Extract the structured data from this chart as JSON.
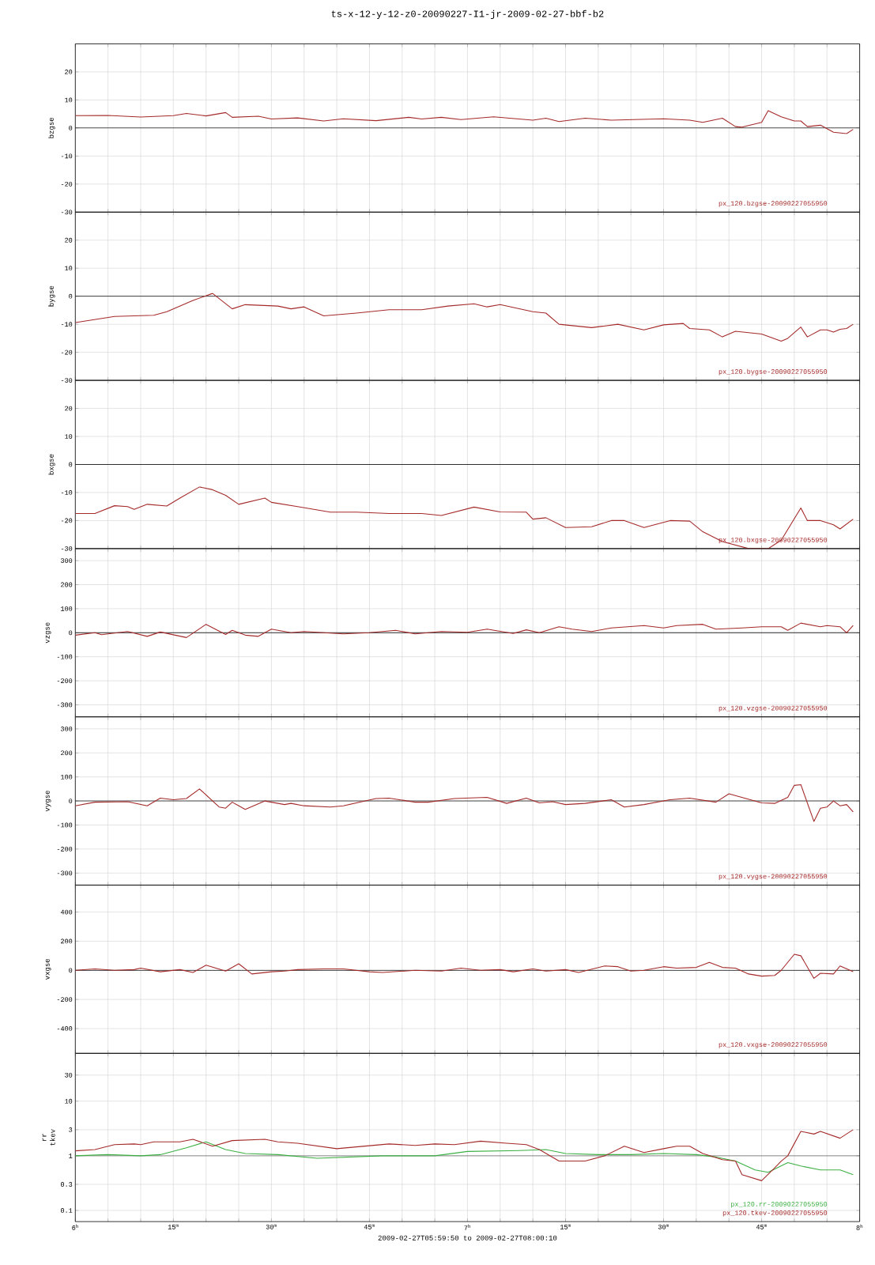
{
  "chart_data": [
    {
      "type": "line",
      "title": "ts-x-12-y-12-z0-20090227-I1-jr-2009-02-27-bbf-b2",
      "ylabel": "bzgse",
      "xlim": [
        "2009-02-27T06:00",
        "2009-02-27T08:00"
      ],
      "xticks": [
        "2009-02-27T06:00",
        "2009-02-27T06:05",
        "2009-02-27T06:10",
        "2009-02-27T06:15",
        "2009-02-27T06:20",
        "2009-02-27T06:25",
        "2009-02-27T06:30",
        "2009-02-27T06:35",
        "2009-02-27T06:40",
        "2009-02-27T06:45",
        "2009-02-27T06:50",
        "2009-02-27T06:55",
        "2009-02-27T07:00",
        "2009-02-27T07:05",
        "2009-02-27T07:10",
        "2009-02-27T07:15",
        "2009-02-27T07:20",
        "2009-02-27T07:25",
        "2009-02-27T07:30",
        "2009-02-27T07:35",
        "2009-02-27T07:40",
        "2009-02-27T07:45",
        "2009-02-27T07:50",
        "2009-02-27T07:55",
        "2009-02-27T08:00"
      ],
      "ylim": [
        -30,
        30
      ],
      "yticks": [
        -30,
        -20,
        -10,
        0,
        10,
        20
      ],
      "tick_labels": "y",
      "grid": true,
      "ref_lines": [
        {
          "axis": "y",
          "value": 0,
          "color": "#000000"
        }
      ],
      "series": [
        {
          "name": "px_120.bzgse-20090227055950",
          "color": "#a52a2a",
          "x": [
            "2009-02-27T06:00",
            "2009-02-27T06:05",
            "2009-02-27T06:10",
            "2009-02-27T06:15",
            "2009-02-27T06:17",
            "2009-02-27T06:20",
            "2009-02-27T06:23",
            "2009-02-27T06:24",
            "2009-02-27T06:28",
            "2009-02-27T06:30",
            "2009-02-27T06:34",
            "2009-02-27T06:38",
            "2009-02-27T06:41",
            "2009-02-27T06:46",
            "2009-02-27T06:51",
            "2009-02-27T06:53",
            "2009-02-27T06:56",
            "2009-02-27T06:59",
            "2009-02-27T07:04",
            "2009-02-27T07:10",
            "2009-02-27T07:12",
            "2009-02-27T07:14",
            "2009-02-27T07:18",
            "2009-02-27T07:22",
            "2009-02-27T07:30",
            "2009-02-27T07:34",
            "2009-02-27T07:36",
            "2009-02-27T07:39",
            "2009-02-27T07:41",
            "2009-02-27T07:42",
            "2009-02-27T07:45",
            "2009-02-27T07:46",
            "2009-02-27T07:48",
            "2009-02-27T07:50",
            "2009-02-27T07:51",
            "2009-02-27T07:52",
            "2009-02-27T07:54",
            "2009-02-27T07:56",
            "2009-02-27T07:58",
            "2009-02-27T07:59"
          ],
          "values": [
            4.4,
            4.5,
            3.9,
            4.4,
            5.2,
            4.3,
            5.5,
            3.8,
            4.2,
            3.2,
            3.6,
            2.5,
            3.3,
            2.6,
            3.8,
            3.2,
            3.8,
            3.0,
            4.0,
            2.8,
            3.5,
            2.3,
            3.5,
            2.8,
            3.3,
            2.8,
            2.0,
            3.5,
            0.5,
            0.3,
            2.0,
            6.2,
            4.0,
            2.5,
            2.5,
            0.5,
            1.0,
            -1.5,
            -2.0,
            -0.5
          ]
        }
      ]
    },
    {
      "type": "line",
      "ylabel": "bygse",
      "xlim": [
        "2009-02-27T06:00",
        "2009-02-27T08:00"
      ],
      "xticks": [
        "2009-02-27T06:00",
        "2009-02-27T06:05",
        "2009-02-27T06:10",
        "2009-02-27T06:15",
        "2009-02-27T06:20",
        "2009-02-27T06:25",
        "2009-02-27T06:30",
        "2009-02-27T06:35",
        "2009-02-27T06:40",
        "2009-02-27T06:45",
        "2009-02-27T06:50",
        "2009-02-27T06:55",
        "2009-02-27T07:00",
        "2009-02-27T07:05",
        "2009-02-27T07:10",
        "2009-02-27T07:15",
        "2009-02-27T07:20",
        "2009-02-27T07:25",
        "2009-02-27T07:30",
        "2009-02-27T07:35",
        "2009-02-27T07:40",
        "2009-02-27T07:45",
        "2009-02-27T07:50",
        "2009-02-27T07:55",
        "2009-02-27T08:00"
      ],
      "ylim": [
        -30,
        30
      ],
      "yticks": [
        -30,
        -20,
        -10,
        0,
        10,
        20
      ],
      "tick_labels": "y",
      "grid": true,
      "ref_lines": [
        {
          "axis": "y",
          "value": 0,
          "color": "#000000"
        }
      ],
      "series": [
        {
          "name": "px_120.bygse-20090227055950",
          "color": "#a52a2a",
          "x": [
            "2009-02-27T06:00",
            "2009-02-27T06:06",
            "2009-02-27T06:09",
            "2009-02-27T06:12",
            "2009-02-27T06:14",
            "2009-02-27T06:18",
            "2009-02-27T06:21",
            "2009-02-27T06:24",
            "2009-02-27T06:26",
            "2009-02-27T06:31",
            "2009-02-27T06:33",
            "2009-02-27T06:35",
            "2009-02-27T06:38",
            "2009-02-27T06:43",
            "2009-02-27T06:48",
            "2009-02-27T06:53",
            "2009-02-27T06:57",
            "2009-02-27T07:01",
            "2009-02-27T07:03",
            "2009-02-27T07:05",
            "2009-02-27T07:10",
            "2009-02-27T07:12",
            "2009-02-27T07:14",
            "2009-02-27T07:19",
            "2009-02-27T07:23",
            "2009-02-27T07:27",
            "2009-02-27T07:30",
            "2009-02-27T07:33",
            "2009-02-27T07:34",
            "2009-02-27T07:37",
            "2009-02-27T07:39",
            "2009-02-27T07:41",
            "2009-02-27T07:45",
            "2009-02-27T07:48",
            "2009-02-27T07:49",
            "2009-02-27T07:51",
            "2009-02-27T07:52",
            "2009-02-27T07:54",
            "2009-02-27T07:55",
            "2009-02-27T07:56",
            "2009-02-27T07:57",
            "2009-02-27T07:58",
            "2009-02-27T07:59"
          ],
          "values": [
            -9.4,
            -7.2,
            -7.0,
            -6.8,
            -5.5,
            -1.5,
            1.0,
            -4.5,
            -3.0,
            -3.5,
            -4.5,
            -3.8,
            -7.0,
            -6.0,
            -4.8,
            -4.8,
            -3.5,
            -2.7,
            -3.8,
            -3.0,
            -5.5,
            -6.0,
            -10.0,
            -11.2,
            -10.0,
            -12.0,
            -10.2,
            -9.7,
            -11.5,
            -12.0,
            -14.5,
            -12.5,
            -13.5,
            -16.0,
            -15.0,
            -11.0,
            -14.5,
            -12.0,
            -12.0,
            -12.8,
            -11.8,
            -11.5,
            -10.0
          ]
        }
      ]
    },
    {
      "type": "line",
      "ylabel": "bxgse",
      "xlim": [
        "2009-02-27T06:00",
        "2009-02-27T08:00"
      ],
      "xticks": [
        "2009-02-27T06:00",
        "2009-02-27T06:05",
        "2009-02-27T06:10",
        "2009-02-27T06:15",
        "2009-02-27T06:20",
        "2009-02-27T06:25",
        "2009-02-27T06:30",
        "2009-02-27T06:35",
        "2009-02-27T06:40",
        "2009-02-27T06:45",
        "2009-02-27T06:50",
        "2009-02-27T06:55",
        "2009-02-27T07:00",
        "2009-02-27T07:05",
        "2009-02-27T07:10",
        "2009-02-27T07:15",
        "2009-02-27T07:20",
        "2009-02-27T07:25",
        "2009-02-27T07:30",
        "2009-02-27T07:35",
        "2009-02-27T07:40",
        "2009-02-27T07:45",
        "2009-02-27T07:50",
        "2009-02-27T07:55",
        "2009-02-27T08:00"
      ],
      "ylim": [
        -30,
        30
      ],
      "yticks": [
        -30,
        -20,
        -10,
        0,
        10,
        20
      ],
      "tick_labels": "y",
      "grid": true,
      "ref_lines": [
        {
          "axis": "y",
          "value": 0,
          "color": "#000000"
        }
      ],
      "series": [
        {
          "name": "px_120.bxgse-20090227055950",
          "color": "#a52a2a",
          "x": [
            "2009-02-27T06:00",
            "2009-02-27T06:03",
            "2009-02-27T06:06",
            "2009-02-27T06:08",
            "2009-02-27T06:09",
            "2009-02-27T06:11",
            "2009-02-27T06:14",
            "2009-02-27T06:16",
            "2009-02-27T06:19",
            "2009-02-27T06:21",
            "2009-02-27T06:22",
            "2009-02-27T06:23",
            "2009-02-27T06:25",
            "2009-02-27T06:29",
            "2009-02-27T06:30",
            "2009-02-27T06:34",
            "2009-02-27T06:39",
            "2009-02-27T06:43",
            "2009-02-27T06:48",
            "2009-02-27T06:53",
            "2009-02-27T06:56",
            "2009-02-27T07:01",
            "2009-02-27T07:05",
            "2009-02-27T07:09",
            "2009-02-27T07:10",
            "2009-02-27T07:12",
            "2009-02-27T07:15",
            "2009-02-27T07:19",
            "2009-02-27T07:22",
            "2009-02-27T07:24",
            "2009-02-27T07:27",
            "2009-02-27T07:31",
            "2009-02-27T07:34",
            "2009-02-27T07:36",
            "2009-02-27T07:39",
            "2009-02-27T07:43",
            "2009-02-27T07:46",
            "2009-02-27T07:48",
            "2009-02-27T07:51",
            "2009-02-27T07:52",
            "2009-02-27T07:54",
            "2009-02-27T07:56",
            "2009-02-27T07:57",
            "2009-02-27T07:59"
          ],
          "values": [
            -17.5,
            -17.5,
            -14.7,
            -15,
            -16,
            -14.2,
            -14.8,
            -12,
            -8,
            -9,
            -10,
            -11,
            -14.2,
            -12,
            -13.5,
            -15,
            -17,
            -17,
            -17.5,
            -17.5,
            -18.2,
            -15.2,
            -16.9,
            -17,
            -19.5,
            -19,
            -22.5,
            -22.2,
            -20,
            -20,
            -22.5,
            -20,
            -20.2,
            -24,
            -27.5,
            -30,
            -30,
            -27,
            -15.5,
            -20,
            -20,
            -21.5,
            -23,
            -19.5
          ]
        }
      ]
    },
    {
      "type": "line",
      "ylabel": "vzgse",
      "xlim": [
        "2009-02-27T06:00",
        "2009-02-27T08:00"
      ],
      "xticks": [
        "2009-02-27T06:00",
        "2009-02-27T06:05",
        "2009-02-27T06:10",
        "2009-02-27T06:15",
        "2009-02-27T06:20",
        "2009-02-27T06:25",
        "2009-02-27T06:30",
        "2009-02-27T06:35",
        "2009-02-27T06:40",
        "2009-02-27T06:45",
        "2009-02-27T06:50",
        "2009-02-27T06:55",
        "2009-02-27T07:00",
        "2009-02-27T07:05",
        "2009-02-27T07:10",
        "2009-02-27T07:15",
        "2009-02-27T07:20",
        "2009-02-27T07:25",
        "2009-02-27T07:30",
        "2009-02-27T07:35",
        "2009-02-27T07:40",
        "2009-02-27T07:45",
        "2009-02-27T07:50",
        "2009-02-27T07:55",
        "2009-02-27T08:00"
      ],
      "ylim": [
        -350,
        350
      ],
      "yticks": [
        -300,
        -200,
        -100,
        0,
        100,
        200,
        300
      ],
      "tick_labels": "y",
      "grid": true,
      "ref_lines": [
        {
          "axis": "y",
          "value": 0,
          "color": "#000000"
        }
      ],
      "series": [
        {
          "name": "px_120.vzgse-20090227055950",
          "color": "#a52a2a",
          "x": [
            "2009-02-27T06:00",
            "2009-02-27T06:03",
            "2009-02-27T06:04",
            "2009-02-27T06:08",
            "2009-02-27T06:11",
            "2009-02-27T06:13",
            "2009-02-27T06:17",
            "2009-02-27T06:20",
            "2009-02-27T06:23",
            "2009-02-27T06:24",
            "2009-02-27T06:26",
            "2009-02-27T06:28",
            "2009-02-27T06:30",
            "2009-02-27T06:33",
            "2009-02-27T06:35",
            "2009-02-27T06:41",
            "2009-02-27T06:45",
            "2009-02-27T06:49",
            "2009-02-27T06:52",
            "2009-02-27T06:56",
            "2009-02-27T07:00",
            "2009-02-27T07:03",
            "2009-02-27T07:07",
            "2009-02-27T07:09",
            "2009-02-27T07:11",
            "2009-02-27T07:14",
            "2009-02-27T07:16",
            "2009-02-27T07:19",
            "2009-02-27T07:22",
            "2009-02-27T07:27",
            "2009-02-27T07:30",
            "2009-02-27T07:32",
            "2009-02-27T07:36",
            "2009-02-27T07:38",
            "2009-02-27T07:42",
            "2009-02-27T07:45",
            "2009-02-27T07:48",
            "2009-02-27T07:49",
            "2009-02-27T07:51",
            "2009-02-27T07:54",
            "2009-02-27T07:55",
            "2009-02-27T07:57",
            "2009-02-27T07:58",
            "2009-02-27T07:59"
          ],
          "values": [
            -10,
            0,
            -8,
            5,
            -15,
            3,
            -20,
            35,
            -7,
            10,
            -10,
            -15,
            15,
            0,
            5,
            -5,
            0,
            10,
            -5,
            5,
            2,
            15,
            -3,
            12,
            0,
            25,
            15,
            5,
            20,
            30,
            20,
            30,
            35,
            15,
            20,
            25,
            25,
            10,
            40,
            25,
            30,
            25,
            0,
            30
          ]
        }
      ]
    },
    {
      "type": "line",
      "ylabel": "vygse",
      "xlim": [
        "2009-02-27T06:00",
        "2009-02-27T08:00"
      ],
      "xticks": [
        "2009-02-27T06:00",
        "2009-02-27T06:05",
        "2009-02-27T06:10",
        "2009-02-27T06:15",
        "2009-02-27T06:20",
        "2009-02-27T06:25",
        "2009-02-27T06:30",
        "2009-02-27T06:35",
        "2009-02-27T06:40",
        "2009-02-27T06:45",
        "2009-02-27T06:50",
        "2009-02-27T06:55",
        "2009-02-27T07:00",
        "2009-02-27T07:05",
        "2009-02-27T07:10",
        "2009-02-27T07:15",
        "2009-02-27T07:20",
        "2009-02-27T07:25",
        "2009-02-27T07:30",
        "2009-02-27T07:35",
        "2009-02-27T07:40",
        "2009-02-27T07:45",
        "2009-02-27T07:50",
        "2009-02-27T07:55",
        "2009-02-27T08:00"
      ],
      "ylim": [
        -350,
        350
      ],
      "yticks": [
        -300,
        -200,
        -100,
        0,
        100,
        200,
        300
      ],
      "tick_labels": "y",
      "grid": true,
      "ref_lines": [
        {
          "axis": "y",
          "value": 0,
          "color": "#000000"
        }
      ],
      "series": [
        {
          "name": "px_120.vygse-20090227055950",
          "color": "#a52a2a",
          "x": [
            "2009-02-27T06:00",
            "2009-02-27T06:03",
            "2009-02-27T06:08",
            "2009-02-27T06:11",
            "2009-02-27T06:13",
            "2009-02-27T06:15",
            "2009-02-27T06:17",
            "2009-02-27T06:19",
            "2009-02-27T06:22",
            "2009-02-27T06:23",
            "2009-02-27T06:24",
            "2009-02-27T06:26",
            "2009-02-27T06:29",
            "2009-02-27T06:32",
            "2009-02-27T06:33",
            "2009-02-27T06:35",
            "2009-02-27T06:39",
            "2009-02-27T06:41",
            "2009-02-27T06:46",
            "2009-02-27T06:48",
            "2009-02-27T06:52",
            "2009-02-27T06:54",
            "2009-02-27T06:58",
            "2009-02-27T07:03",
            "2009-02-27T07:06",
            "2009-02-27T07:09",
            "2009-02-27T07:11",
            "2009-02-27T07:13",
            "2009-02-27T07:15",
            "2009-02-27T07:18",
            "2009-02-27T07:22",
            "2009-02-27T07:24",
            "2009-02-27T07:27",
            "2009-02-27T07:31",
            "2009-02-27T07:34",
            "2009-02-27T07:38",
            "2009-02-27T07:40",
            "2009-02-27T07:45",
            "2009-02-27T07:47",
            "2009-02-27T07:49",
            "2009-02-27T07:50",
            "2009-02-27T07:51",
            "2009-02-27T07:53",
            "2009-02-27T07:54",
            "2009-02-27T07:55",
            "2009-02-27T07:56",
            "2009-02-27T07:57",
            "2009-02-27T07:58",
            "2009-02-27T07:59"
          ],
          "values": [
            -20,
            -5,
            -3,
            -20,
            12,
            5,
            10,
            50,
            -25,
            -30,
            -5,
            -35,
            0,
            -15,
            -10,
            -20,
            -25,
            -20,
            10,
            12,
            -5,
            -5,
            10,
            15,
            -10,
            12,
            -8,
            -3,
            -15,
            -10,
            5,
            -25,
            -15,
            5,
            12,
            -5,
            30,
            -8,
            -10,
            15,
            65,
            68,
            -85,
            -30,
            -25,
            0,
            -20,
            -15,
            -45
          ]
        }
      ]
    },
    {
      "type": "line",
      "ylabel": "vxgse",
      "xlim": [
        "2009-02-27T06:00",
        "2009-02-27T08:00"
      ],
      "xticks": [
        "2009-02-27T06:00",
        "2009-02-27T06:05",
        "2009-02-27T06:10",
        "2009-02-27T06:15",
        "2009-02-27T06:20",
        "2009-02-27T06:25",
        "2009-02-27T06:30",
        "2009-02-27T06:35",
        "2009-02-27T06:40",
        "2009-02-27T06:45",
        "2009-02-27T06:50",
        "2009-02-27T06:55",
        "2009-02-27T07:00",
        "2009-02-27T07:05",
        "2009-02-27T07:10",
        "2009-02-27T07:15",
        "2009-02-27T07:20",
        "2009-02-27T07:25",
        "2009-02-27T07:30",
        "2009-02-27T07:35",
        "2009-02-27T07:40",
        "2009-02-27T07:45",
        "2009-02-27T07:50",
        "2009-02-27T07:55",
        "2009-02-27T08:00"
      ],
      "ylim": [
        -570,
        585
      ],
      "yticks": [
        -400,
        -200,
        0,
        200,
        400
      ],
      "tick_labels": "y",
      "grid": true,
      "ref_lines": [
        {
          "axis": "y",
          "value": 0,
          "color": "#000000"
        }
      ],
      "series": [
        {
          "name": "px_120.vxgse-20090227055950",
          "color": "#a52a2a",
          "x": [
            "2009-02-27T06:00",
            "2009-02-27T06:03",
            "2009-02-27T06:06",
            "2009-02-27T06:09",
            "2009-02-27T06:10",
            "2009-02-27T06:13",
            "2009-02-27T06:16",
            "2009-02-27T06:18",
            "2009-02-27T06:20",
            "2009-02-27T06:23",
            "2009-02-27T06:25",
            "2009-02-27T06:27",
            "2009-02-27T06:30",
            "2009-02-27T06:32",
            "2009-02-27T06:34",
            "2009-02-27T06:38",
            "2009-02-27T06:41",
            "2009-02-27T06:45",
            "2009-02-27T06:47",
            "2009-02-27T06:52",
            "2009-02-27T06:56",
            "2009-02-27T06:59",
            "2009-02-27T07:02",
            "2009-02-27T07:05",
            "2009-02-27T07:07",
            "2009-02-27T07:10",
            "2009-02-27T07:12",
            "2009-02-27T07:15",
            "2009-02-27T07:17",
            "2009-02-27T07:21",
            "2009-02-27T07:23",
            "2009-02-27T07:25",
            "2009-02-27T07:27",
            "2009-02-27T07:30",
            "2009-02-27T07:32",
            "2009-02-27T07:35",
            "2009-02-27T07:37",
            "2009-02-27T07:39",
            "2009-02-27T07:41",
            "2009-02-27T07:43",
            "2009-02-27T07:45",
            "2009-02-27T07:47",
            "2009-02-27T07:48",
            "2009-02-27T07:50",
            "2009-02-27T07:51",
            "2009-02-27T07:53",
            "2009-02-27T07:54",
            "2009-02-27T07:56",
            "2009-02-27T07:57",
            "2009-02-27T07:59"
          ],
          "values": [
            0,
            10,
            0,
            5,
            15,
            -10,
            5,
            -15,
            35,
            -5,
            45,
            -25,
            -10,
            -5,
            5,
            10,
            10,
            -10,
            -15,
            0,
            -5,
            15,
            0,
            5,
            -10,
            10,
            -5,
            5,
            -15,
            30,
            25,
            -5,
            0,
            25,
            15,
            20,
            55,
            20,
            15,
            -25,
            -40,
            -35,
            0,
            110,
            100,
            -55,
            -20,
            -25,
            30,
            -10
          ]
        }
      ]
    },
    {
      "type": "line",
      "ylabel": "rr tkev",
      "xlabel": "2009-02-27T05:59:50 to 2009-02-27T08:00:10",
      "xlim": [
        "2009-02-27T06:00",
        "2009-02-27T08:00"
      ],
      "xticks": [
        {
          "value": "2009-02-27T06:00",
          "label": "6$^{h}$"
        },
        {
          "value": "2009-02-27T06:05",
          "label": null
        },
        {
          "value": "2009-02-27T06:10",
          "label": null
        },
        {
          "value": "2009-02-27T06:15",
          "label": "15$^{m}$"
        },
        {
          "value": "2009-02-27T06:20",
          "label": null
        },
        {
          "value": "2009-02-27T06:25",
          "label": null
        },
        {
          "value": "2009-02-27T06:30",
          "label": "30$^{m}$"
        },
        {
          "value": "2009-02-27T06:35",
          "label": null
        },
        {
          "value": "2009-02-27T06:40",
          "label": null
        },
        {
          "value": "2009-02-27T06:45",
          "label": "45$^{m}$"
        },
        {
          "value": "2009-02-27T06:50",
          "label": null
        },
        {
          "value": "2009-02-27T06:55",
          "label": null
        },
        {
          "value": "2009-02-27T07:00",
          "label": "7$^{h}$"
        },
        {
          "value": "2009-02-27T07:05",
          "label": null
        },
        {
          "value": "2009-02-27T07:10",
          "label": null
        },
        {
          "value": "2009-02-27T07:15",
          "label": "15$^{m}$"
        },
        {
          "value": "2009-02-27T07:20",
          "label": null
        },
        {
          "value": "2009-02-27T07:25",
          "label": null
        },
        {
          "value": "2009-02-27T07:30",
          "label": "30$^{m}$"
        },
        {
          "value": "2009-02-27T07:35",
          "label": null
        },
        {
          "value": "2009-02-27T07:40",
          "label": null
        },
        {
          "value": "2009-02-27T07:45",
          "label": "45$^{m}$"
        },
        {
          "value": "2009-02-27T07:50",
          "label": null
        },
        {
          "value": "2009-02-27T07:55",
          "label": null
        },
        {
          "value": "2009-02-27T08:00",
          "label": "8$^{h}$"
        }
      ],
      "ylim": [
        0.0625,
        75
      ],
      "yticks": [
        0.1,
        0.3,
        1,
        3,
        10,
        30
      ],
      "log": "y",
      "grid": true,
      "ref_lines": [
        {
          "axis": "y",
          "value": 1,
          "color": "#000000"
        }
      ],
      "series": [
        {
          "name": "px_120.rr-20090227055950",
          "color": "#3cb043",
          "x": [
            "2009-02-27T06:00",
            "2009-02-27T06:05",
            "2009-02-27T06:10",
            "2009-02-27T06:13",
            "2009-02-27T06:17",
            "2009-02-27T06:20",
            "2009-02-27T06:23",
            "2009-02-27T06:26",
            "2009-02-27T06:31",
            "2009-02-27T06:37",
            "2009-02-27T06:47",
            "2009-02-27T06:55",
            "2009-02-27T07:00",
            "2009-02-27T07:08",
            "2009-02-27T07:12",
            "2009-02-27T07:15",
            "2009-02-27T07:20",
            "2009-02-27T07:25",
            "2009-02-27T07:30",
            "2009-02-27T07:35",
            "2009-02-27T07:38",
            "2009-02-27T07:41",
            "2009-02-27T07:44",
            "2009-02-27T07:46",
            "2009-02-27T07:49",
            "2009-02-27T07:51",
            "2009-02-27T07:54",
            "2009-02-27T07:57",
            "2009-02-27T07:59"
          ],
          "values": [
            1.0,
            1.05,
            1.0,
            1.05,
            1.4,
            1.8,
            1.3,
            1.1,
            1.05,
            0.9,
            1.0,
            1.0,
            1.2,
            1.25,
            1.3,
            1.1,
            1.05,
            1.05,
            1.1,
            1.05,
            0.95,
            0.8,
            0.55,
            0.5,
            0.75,
            0.65,
            0.55,
            0.55,
            0.45
          ]
        },
        {
          "name": "px_120.tkev-20090227055950",
          "color": "#a52a2a",
          "x": [
            "2009-02-27T06:00",
            "2009-02-27T06:03",
            "2009-02-27T06:06",
            "2009-02-27T06:09",
            "2009-02-27T06:10",
            "2009-02-27T06:12",
            "2009-02-27T06:16",
            "2009-02-27T06:18",
            "2009-02-27T06:21",
            "2009-02-27T06:24",
            "2009-02-27T06:29",
            "2009-02-27T06:31",
            "2009-02-27T06:34",
            "2009-02-27T06:40",
            "2009-02-27T06:48",
            "2009-02-27T06:52",
            "2009-02-27T06:55",
            "2009-02-27T06:58",
            "2009-02-27T07:02",
            "2009-02-27T07:06",
            "2009-02-27T07:09",
            "2009-02-27T07:11",
            "2009-02-27T07:14",
            "2009-02-27T07:18",
            "2009-02-27T07:21",
            "2009-02-27T07:24",
            "2009-02-27T07:27",
            "2009-02-27T07:30",
            "2009-02-27T07:32",
            "2009-02-27T07:34",
            "2009-02-27T07:36",
            "2009-02-27T07:39",
            "2009-02-27T07:41",
            "2009-02-27T07:42",
            "2009-02-27T07:45",
            "2009-02-27T07:47",
            "2009-02-27T07:48",
            "2009-02-27T07:49",
            "2009-02-27T07:51",
            "2009-02-27T07:53",
            "2009-02-27T07:54",
            "2009-02-27T07:57",
            "2009-02-27T07:59"
          ],
          "values": [
            1.23,
            1.3,
            1.6,
            1.65,
            1.6,
            1.8,
            1.8,
            2.0,
            1.5,
            1.9,
            2.0,
            1.8,
            1.7,
            1.35,
            1.65,
            1.55,
            1.65,
            1.6,
            1.85,
            1.7,
            1.6,
            1.3,
            0.8,
            0.8,
            1.0,
            1.5,
            1.15,
            1.35,
            1.5,
            1.5,
            1.1,
            0.85,
            0.8,
            0.45,
            0.35,
            0.6,
            0.8,
            1.0,
            2.8,
            2.5,
            2.8,
            2.1,
            3.0
          ]
        }
      ]
    }
  ]
}
